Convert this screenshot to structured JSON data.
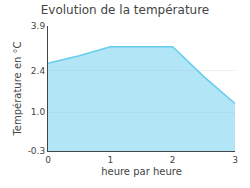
{
  "chart_data": {
    "type": "area",
    "title": "Evolution de la température",
    "xlabel": "heure par heure",
    "ylabel": "Température en °C",
    "x": [
      0,
      0.5,
      1.0,
      1.5,
      2.0,
      2.5,
      3.0
    ],
    "values": [
      2.65,
      2.9,
      3.2,
      3.2,
      3.2,
      2.2,
      1.3
    ],
    "color": "#66ccee",
    "xlim": [
      0,
      3
    ],
    "xticks": [
      0,
      1,
      2,
      3
    ],
    "ylim": [
      -0.3,
      3.9
    ],
    "yticks": [
      -0.3,
      {
        "value": 1.0,
        "label": "1.0"
      },
      2.4,
      3.9
    ],
    "grid": "y"
  }
}
